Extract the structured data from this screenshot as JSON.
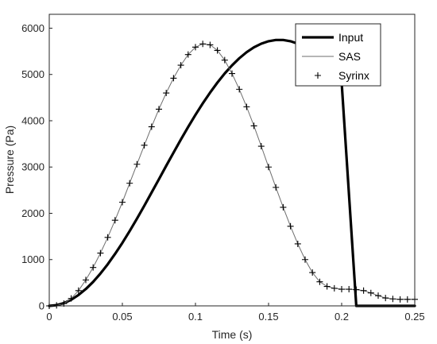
{
  "chart_data": {
    "type": "line",
    "xlabel": "Time (s)",
    "ylabel": "Pressure (Pa)",
    "xlim": [
      0,
      0.25
    ],
    "ylim": [
      0,
      6300
    ],
    "xticks": [
      0,
      0.05,
      0.1,
      0.15,
      0.2,
      0.25
    ],
    "xtick_labels": [
      "0",
      "0.05",
      "0.1",
      "0.15",
      "0.2",
      "0.25"
    ],
    "yticks": [
      0,
      1000,
      2000,
      3000,
      4000,
      5000,
      6000
    ],
    "ytick_labels": [
      "0",
      "1000",
      "2000",
      "3000",
      "4000",
      "5000",
      "6000"
    ],
    "grid": false,
    "legend_position": "top-right",
    "series": [
      {
        "name": "Input",
        "style": "thick-line",
        "color": "#000000",
        "x": [
          0,
          0.005,
          0.01,
          0.015,
          0.02,
          0.025,
          0.03,
          0.035,
          0.04,
          0.045,
          0.05,
          0.055,
          0.06,
          0.065,
          0.07,
          0.075,
          0.08,
          0.085,
          0.09,
          0.095,
          0.1,
          0.105,
          0.11,
          0.115,
          0.12,
          0.125,
          0.13,
          0.135,
          0.14,
          0.145,
          0.15,
          0.155,
          0.16,
          0.165,
          0.17,
          0.175,
          0.18,
          0.185,
          0.19,
          0.195,
          0.2,
          0.21,
          0.22,
          0.23,
          0.24,
          0.25
        ],
        "y": [
          0,
          15,
          59,
          132,
          235,
          364,
          519,
          698,
          900,
          1122,
          1362,
          1617,
          1885,
          2163,
          2449,
          2737,
          3026,
          3312,
          3593,
          3865,
          4126,
          4375,
          4608,
          4824,
          5021,
          5197,
          5351,
          5481,
          5586,
          5665,
          5718,
          5745,
          5745,
          5718,
          5665,
          5586,
          5481,
          5351,
          5197,
          5021,
          4824,
          0,
          0,
          0,
          0,
          0
        ]
      },
      {
        "name": "SAS",
        "style": "thin-line",
        "color": "#6e6e6e",
        "x": [
          0,
          0.005,
          0.01,
          0.015,
          0.02,
          0.025,
          0.03,
          0.035,
          0.04,
          0.045,
          0.05,
          0.055,
          0.06,
          0.065,
          0.07,
          0.075,
          0.08,
          0.085,
          0.09,
          0.095,
          0.1,
          0.105,
          0.11,
          0.115,
          0.12,
          0.125,
          0.13,
          0.135,
          0.14,
          0.145,
          0.15,
          0.155,
          0.16,
          0.165,
          0.17,
          0.175,
          0.18,
          0.185,
          0.19,
          0.195,
          0.2,
          0.205,
          0.21,
          0.215,
          0.22,
          0.225,
          0.23,
          0.235,
          0.24,
          0.245,
          0.25
        ],
        "y": [
          0,
          10,
          50,
          160,
          330,
          560,
          830,
          1140,
          1480,
          1850,
          2240,
          2650,
          3060,
          3470,
          3870,
          4250,
          4600,
          4920,
          5200,
          5430,
          5590,
          5660,
          5640,
          5520,
          5310,
          5020,
          4680,
          4300,
          3890,
          3450,
          3000,
          2560,
          2130,
          1720,
          1340,
          1000,
          720,
          520,
          420,
          380,
          360,
          360,
          350,
          330,
          280,
          220,
          170,
          150,
          140,
          140,
          140
        ]
      },
      {
        "name": "Syrinx",
        "style": "plus-markers",
        "color": "#000000",
        "x": [
          0,
          0.005,
          0.01,
          0.015,
          0.02,
          0.025,
          0.03,
          0.035,
          0.04,
          0.045,
          0.05,
          0.055,
          0.06,
          0.065,
          0.07,
          0.075,
          0.08,
          0.085,
          0.09,
          0.095,
          0.1,
          0.105,
          0.11,
          0.115,
          0.12,
          0.125,
          0.13,
          0.135,
          0.14,
          0.145,
          0.15,
          0.155,
          0.16,
          0.165,
          0.17,
          0.175,
          0.18,
          0.185,
          0.19,
          0.195,
          0.2,
          0.205,
          0.21,
          0.215,
          0.22,
          0.225,
          0.23,
          0.235,
          0.24,
          0.245,
          0.25
        ],
        "y": [
          0,
          10,
          50,
          160,
          330,
          560,
          830,
          1140,
          1480,
          1850,
          2240,
          2650,
          3060,
          3470,
          3870,
          4250,
          4600,
          4920,
          5200,
          5430,
          5590,
          5660,
          5640,
          5520,
          5310,
          5020,
          4680,
          4300,
          3890,
          3450,
          3000,
          2560,
          2130,
          1720,
          1340,
          1000,
          720,
          520,
          420,
          380,
          360,
          360,
          350,
          330,
          280,
          220,
          170,
          150,
          140,
          140,
          140
        ]
      }
    ]
  }
}
